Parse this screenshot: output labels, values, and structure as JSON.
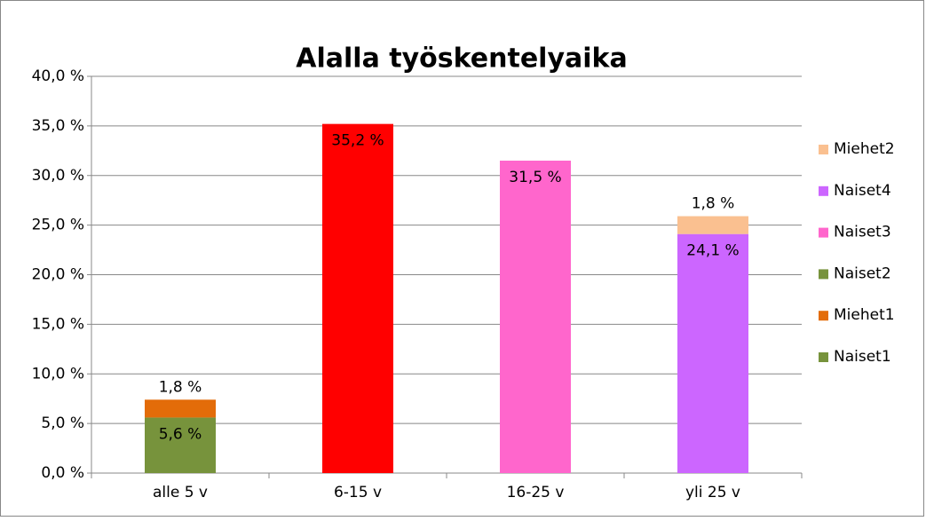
{
  "chart_data": {
    "type": "stacked_bar",
    "title": "Alalla työskentelyaika",
    "categories": [
      "alle 5 v",
      "6-15 v",
      "16-25 v",
      "yli 25 v"
    ],
    "series": [
      {
        "name": "Naiset1",
        "color": "#77933c",
        "values": [
          5.6,
          null,
          null,
          null
        ],
        "value_labels": [
          "5,6 %",
          null,
          null,
          null
        ]
      },
      {
        "name": "Miehet1",
        "color": "#e36c09",
        "values": [
          1.8,
          null,
          null,
          null
        ],
        "value_labels": [
          "1,8 %",
          null,
          null,
          null
        ]
      },
      {
        "name": "Naiset2",
        "color": "#77933c",
        "point_colors": [
          null,
          "#ff0000",
          null,
          null
        ],
        "values": [
          null,
          35.2,
          null,
          null
        ],
        "value_labels": [
          null,
          "35,2 %",
          null,
          null
        ]
      },
      {
        "name": "Naiset3",
        "color": "#ff66cc",
        "values": [
          null,
          null,
          31.5,
          null
        ],
        "value_labels": [
          null,
          null,
          "31,5 %",
          null
        ]
      },
      {
        "name": "Naiset4",
        "color": "#cc66ff",
        "values": [
          null,
          null,
          null,
          24.1
        ],
        "value_labels": [
          null,
          null,
          null,
          "24,1 %"
        ]
      },
      {
        "name": "Miehet2",
        "color": "#fac090",
        "values": [
          null,
          null,
          null,
          1.8
        ],
        "value_labels": [
          null,
          null,
          null,
          "1,8 %"
        ]
      }
    ],
    "ylim": [
      0,
      40
    ],
    "yticks": [
      {
        "value": 0,
        "label": "0,0 %"
      },
      {
        "value": 5,
        "label": "5,0 %"
      },
      {
        "value": 10,
        "label": "10,0 %"
      },
      {
        "value": 15,
        "label": "15,0 %"
      },
      {
        "value": 20,
        "label": "20,0 %"
      },
      {
        "value": 25,
        "label": "25,0 %"
      },
      {
        "value": 30,
        "label": "30,0 %"
      },
      {
        "value": 35,
        "label": "35,0 %"
      },
      {
        "value": 40,
        "label": "40,0 %"
      }
    ],
    "grid": true,
    "legend": "right"
  }
}
